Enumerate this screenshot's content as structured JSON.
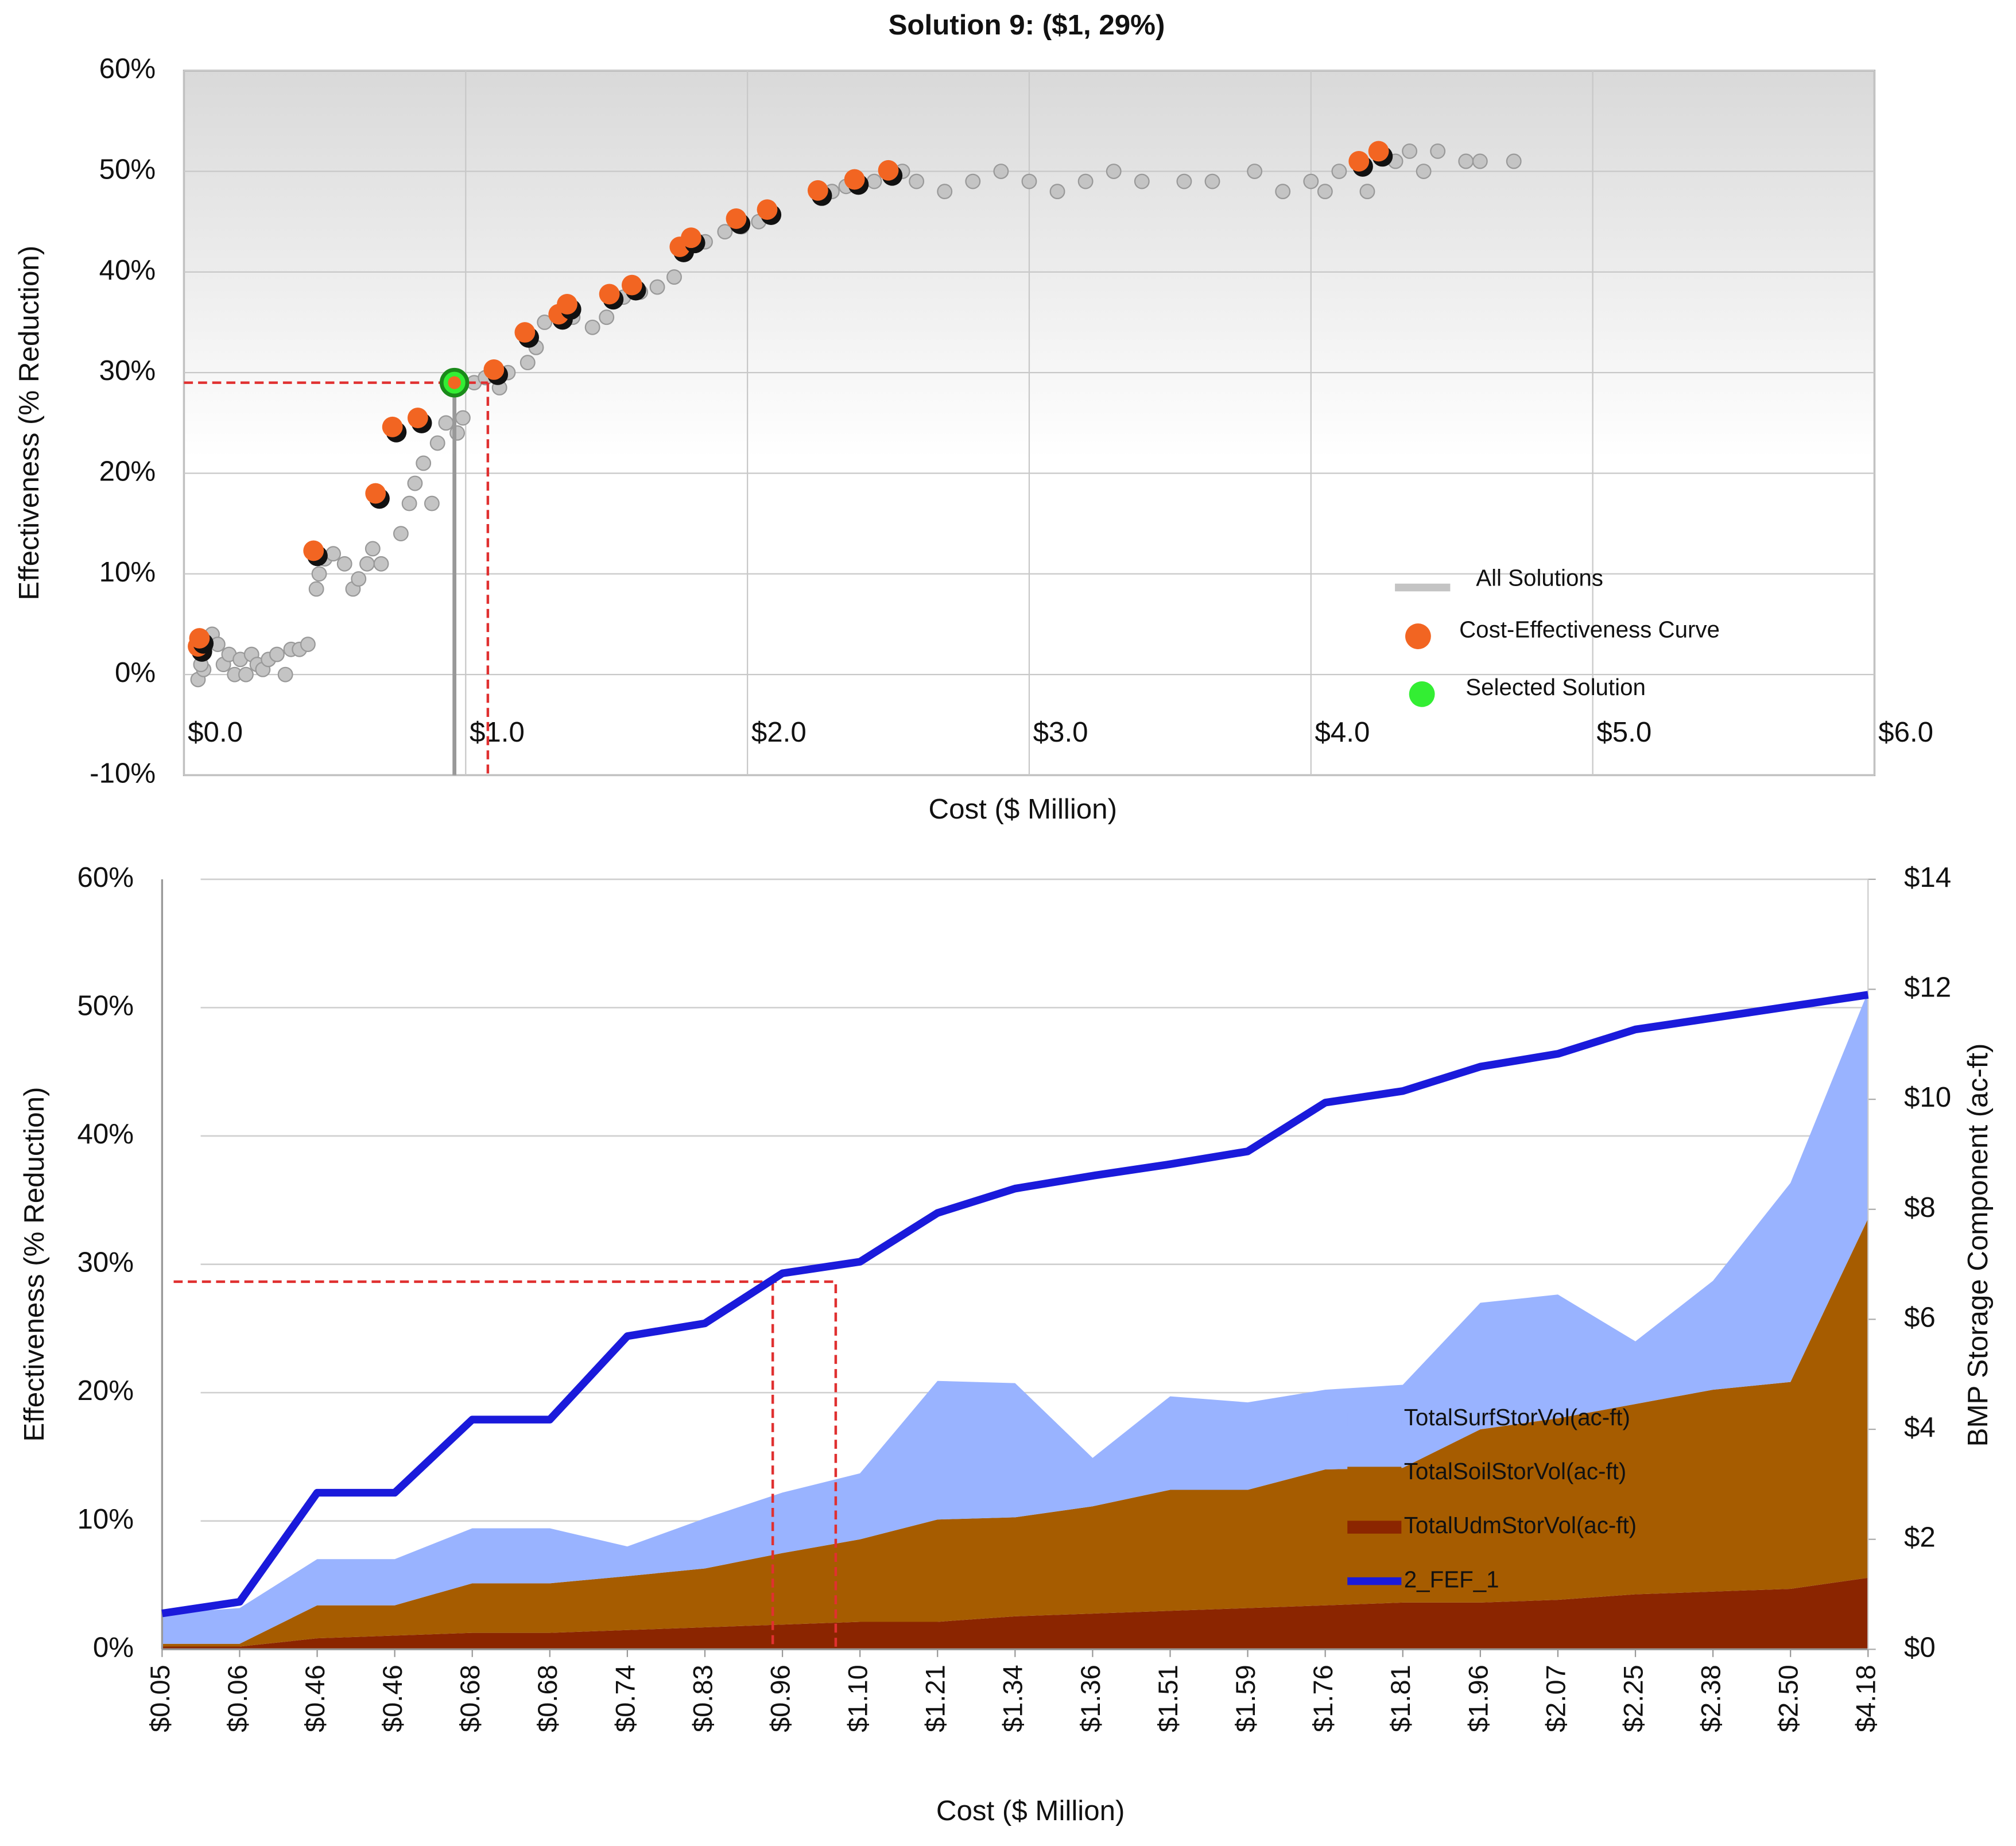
{
  "chart_data": [
    {
      "type": "scatter",
      "title": "Solution 9: ($1, 29%)",
      "xlabel": "Cost ($ Million)",
      "ylabel": "Effectiveness (% Reduction)",
      "xlim": [
        0,
        6
      ],
      "ylim": [
        -10,
        60
      ],
      "xticks": [
        {
          "value": 0,
          "label": "$0.0"
        },
        {
          "value": 1,
          "label": "$1.0"
        },
        {
          "value": 2,
          "label": "$2.0"
        },
        {
          "value": 3,
          "label": "$3.0"
        },
        {
          "value": 4,
          "label": "$4.0"
        },
        {
          "value": 5,
          "label": "$5.0"
        },
        {
          "value": 6,
          "label": "$6.0"
        }
      ],
      "yticks": [
        {
          "value": -10,
          "label": "-10%"
        },
        {
          "value": 0,
          "label": "0%"
        },
        {
          "value": 10,
          "label": "10%"
        },
        {
          "value": 20,
          "label": "20%"
        },
        {
          "value": 30,
          "label": "30%"
        },
        {
          "value": 40,
          "label": "40%"
        },
        {
          "value": 50,
          "label": "50%"
        },
        {
          "value": 60,
          "label": "60%"
        }
      ],
      "grid": true,
      "legend": "lower right",
      "series": [
        {
          "name": "All Solutions",
          "color": "#c4c4c4",
          "x": [
            0.05,
            0.07,
            0.06,
            0.08,
            0.1,
            0.12,
            0.14,
            0.16,
            0.18,
            0.2,
            0.22,
            0.24,
            0.26,
            0.28,
            0.3,
            0.33,
            0.36,
            0.38,
            0.41,
            0.44,
            0.47,
            0.48,
            0.5,
            0.53,
            0.57,
            0.6,
            0.62,
            0.65,
            0.67,
            0.7,
            0.77,
            0.8,
            0.82,
            0.85,
            0.88,
            0.9,
            0.93,
            0.97,
            0.99,
            1.03,
            1.07,
            1.12,
            1.15,
            1.22,
            1.25,
            1.28,
            1.38,
            1.45,
            1.5,
            1.56,
            1.62,
            1.68,
            1.74,
            1.85,
            1.92,
            1.98,
            2.04,
            2.3,
            2.35,
            2.45,
            2.55,
            2.6,
            2.7,
            2.8,
            2.9,
            3.0,
            3.1,
            3.2,
            3.3,
            3.4,
            3.55,
            3.65,
            3.8,
            3.9,
            4.0,
            4.05,
            4.1,
            4.2,
            4.3,
            4.35,
            4.4,
            4.45,
            4.55,
            4.6,
            4.72
          ],
          "values": [
            -0.5,
            0.5,
            1,
            3.5,
            4,
            3,
            1,
            2,
            0,
            1.5,
            0,
            2,
            1,
            0.5,
            1.5,
            2,
            0,
            2.5,
            2.5,
            3,
            8.5,
            10,
            11.5,
            12,
            11,
            8.5,
            9.5,
            11,
            12.5,
            11,
            14,
            17,
            19,
            21,
            17,
            23,
            25,
            24,
            25.5,
            29,
            29.5,
            28.5,
            30,
            31,
            32.5,
            35,
            35.5,
            34.5,
            35.5,
            37.5,
            38,
            38.5,
            39.5,
            43,
            44,
            44.5,
            45,
            48,
            48.5,
            49,
            50,
            49,
            48,
            49,
            50,
            49,
            48,
            49,
            50,
            49,
            49,
            49,
            50,
            48,
            49,
            48,
            50,
            48,
            51,
            52,
            50,
            52,
            51,
            51,
            51
          ]
        },
        {
          "name": "Cost-Effectiveness Curve",
          "color": "#f26522",
          "x": [
            0.05,
            0.055,
            0.46,
            0.68,
            0.74,
            0.83,
            1.1,
            1.21,
            1.33,
            1.36,
            1.51,
            1.59,
            1.76,
            1.8,
            1.96,
            2.07,
            2.25,
            2.38,
            2.5,
            4.17,
            4.24
          ],
          "values": [
            2.8,
            3.6,
            12.3,
            18,
            24.6,
            25.5,
            30.3,
            34,
            35.8,
            36.8,
            37.8,
            38.7,
            42.5,
            43.4,
            45.3,
            46.2,
            48.1,
            49.2,
            50.1,
            51,
            52
          ]
        },
        {
          "name": "Selected Solution",
          "color": "#33ee33",
          "x": [
            0.96
          ],
          "values": [
            29
          ]
        }
      ]
    },
    {
      "type": "combo",
      "xlabel": "Cost ($ Million)",
      "ylabel": "Effectiveness (% Reduction)",
      "y2label": "BMP Storage Component (ac-ft)",
      "categories": [
        "$0.05",
        "$0.06",
        "$0.46",
        "$0.46",
        "$0.68",
        "$0.68",
        "$0.74",
        "$0.83",
        "$0.96",
        "$1.10",
        "$1.21",
        "$1.34",
        "$1.36",
        "$1.51",
        "$1.59",
        "$1.76",
        "$1.81",
        "$1.96",
        "$2.07",
        "$2.25",
        "$2.38",
        "$2.50",
        "$4.18"
      ],
      "ylim": [
        0,
        60
      ],
      "y2lim": [
        0,
        14
      ],
      "yticks": [
        {
          "value": 0,
          "label": "0%"
        },
        {
          "value": 10,
          "label": "10%"
        },
        {
          "value": 20,
          "label": "20%"
        },
        {
          "value": 30,
          "label": "30%"
        },
        {
          "value": 40,
          "label": "40%"
        },
        {
          "value": 50,
          "label": "50%"
        },
        {
          "value": 60,
          "label": "60%"
        }
      ],
      "y2ticks": [
        {
          "value": 0,
          "label": "$0"
        },
        {
          "value": 2,
          "label": "$2"
        },
        {
          "value": 4,
          "label": "$4"
        },
        {
          "value": 6,
          "label": "$6"
        },
        {
          "value": 8,
          "label": "$8"
        },
        {
          "value": 10,
          "label": "$10"
        },
        {
          "value": 12,
          "label": "$12"
        },
        {
          "value": 14,
          "label": "$14"
        }
      ],
      "grid": true,
      "stacked": true,
      "legend": "lower right",
      "series": [
        {
          "name": "TotalSurfStorVol(ac-ft)",
          "color": "#99b3ff",
          "kind": "area",
          "axis": "y2",
          "values": [
            0.55,
            0.65,
            0.84,
            0.84,
            1.0,
            1.0,
            0.54,
            0.91,
            1.1,
            1.2,
            2.52,
            2.44,
            0.88,
            1.7,
            1.59,
            1.45,
            1.51,
            2.3,
            2.25,
            1.14,
            1.98,
            3.62,
            4.13
          ]
        },
        {
          "name": "TotalSoilStorVol(ac-ft)",
          "color": "#a65c00",
          "kind": "area",
          "axis": "y2",
          "values": [
            0.05,
            0.05,
            0.6,
            0.55,
            0.9,
            0.9,
            0.98,
            1.07,
            1.3,
            1.5,
            1.86,
            1.8,
            1.95,
            2.2,
            2.15,
            2.47,
            2.45,
            3.15,
            3.3,
            3.46,
            3.67,
            3.76,
            6.53
          ]
        },
        {
          "name": "TotalUdmStorVol(ac-ft)",
          "color": "#8b2500",
          "kind": "area",
          "axis": "y2",
          "values": [
            0.05,
            0.05,
            0.2,
            0.25,
            0.3,
            0.3,
            0.35,
            0.4,
            0.45,
            0.5,
            0.5,
            0.6,
            0.65,
            0.7,
            0.75,
            0.8,
            0.85,
            0.85,
            0.9,
            1.0,
            1.05,
            1.1,
            1.3
          ]
        },
        {
          "name": "2_FEF_1",
          "color": "#1a1adb",
          "kind": "line",
          "values": [
            2.8,
            3.7,
            12.2,
            12.2,
            17.9,
            17.9,
            24.4,
            25.4,
            29.3,
            30.2,
            34.0,
            35.9,
            36.9,
            37.8,
            38.8,
            42.6,
            43.5,
            45.4,
            46.4,
            48.3,
            49.2,
            50.1,
            51.0
          ]
        }
      ]
    }
  ]
}
